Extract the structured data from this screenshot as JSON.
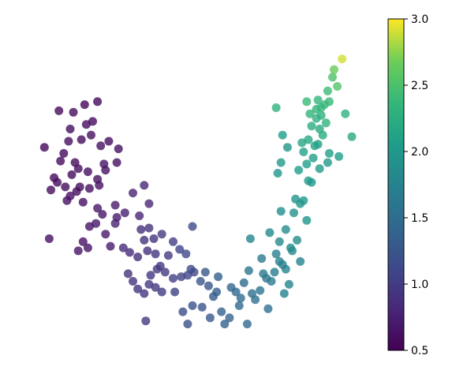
{
  "chart_data": {
    "type": "scatter",
    "title": "",
    "xlabel": "",
    "ylabel": "",
    "axes_visible": false,
    "xlim": [
      0,
      100
    ],
    "ylim": [
      0,
      100
    ],
    "grid": false,
    "colormap": "viridis",
    "colorbar": {
      "vmin": 0.5,
      "vmax": 3.0,
      "ticks": [
        0.5,
        1.0,
        1.5,
        2.0,
        2.5,
        3.0
      ],
      "tick_labels": [
        "0.5",
        "1.0",
        "1.5",
        "2.0",
        "2.5",
        "3.0"
      ],
      "placement": "right"
    },
    "marker_alpha": 0.8,
    "points": [
      [
        4.0,
        62.0,
        0.55
      ],
      [
        8.5,
        74.0,
        0.57
      ],
      [
        13.0,
        73.5,
        0.58
      ],
      [
        16.5,
        76.0,
        0.56
      ],
      [
        19.0,
        70.5,
        0.57
      ],
      [
        20.5,
        77.0,
        0.58
      ],
      [
        12.0,
        68.0,
        0.6
      ],
      [
        17.0,
        69.5,
        0.59
      ],
      [
        11.5,
        64.0,
        0.61
      ],
      [
        15.5,
        64.5,
        0.6
      ],
      [
        10.0,
        60.0,
        0.57
      ],
      [
        13.5,
        57.0,
        0.58
      ],
      [
        18.5,
        66.0,
        0.62
      ],
      [
        21.5,
        62.5,
        0.63
      ],
      [
        24.0,
        64.0,
        0.6
      ],
      [
        27.0,
        61.5,
        0.62
      ],
      [
        9.0,
        57.5,
        0.59
      ],
      [
        12.5,
        53.0,
        0.58
      ],
      [
        14.5,
        55.0,
        0.6
      ],
      [
        17.5,
        54.0,
        0.61
      ],
      [
        7.0,
        52.0,
        0.58
      ],
      [
        10.5,
        49.0,
        0.6
      ],
      [
        15.0,
        49.0,
        0.59
      ],
      [
        20.5,
        51.5,
        0.62
      ],
      [
        23.0,
        54.5,
        0.63
      ],
      [
        6.0,
        48.0,
        0.6
      ],
      [
        12.0,
        46.0,
        0.61
      ],
      [
        18.0,
        48.5,
        0.61
      ],
      [
        22.5,
        56.5,
        0.63
      ],
      [
        26.5,
        57.0,
        0.62
      ],
      [
        11.0,
        44.5,
        0.62
      ],
      [
        16.0,
        44.0,
        0.61
      ],
      [
        21.0,
        49.5,
        0.64
      ],
      [
        14.0,
        47.5,
        0.59
      ],
      [
        8.0,
        50.5,
        0.58
      ],
      [
        5.5,
        32.0,
        0.62
      ],
      [
        14.5,
        28.0,
        0.65
      ],
      [
        16.0,
        31.0,
        0.64
      ],
      [
        17.5,
        29.0,
        0.66
      ],
      [
        20.0,
        37.0,
        0.68
      ],
      [
        23.0,
        33.5,
        0.7
      ],
      [
        24.5,
        29.5,
        0.72
      ],
      [
        26.5,
        39.0,
        0.72
      ],
      [
        18.0,
        36.0,
        0.66
      ],
      [
        29.0,
        40.5,
        0.75
      ],
      [
        20.5,
        42.0,
        0.7
      ],
      [
        22.0,
        40.0,
        0.68
      ],
      [
        26.0,
        43.0,
        0.71
      ],
      [
        31.5,
        47.0,
        0.78
      ],
      [
        35.0,
        49.5,
        0.8
      ],
      [
        33.5,
        39.5,
        0.8
      ],
      [
        36.5,
        43.5,
        0.82
      ],
      [
        26.0,
        37.0,
        0.78
      ],
      [
        28.5,
        29.0,
        0.85
      ],
      [
        30.5,
        27.5,
        0.86
      ],
      [
        34.0,
        35.0,
        0.88
      ],
      [
        35.0,
        31.5,
        0.9
      ],
      [
        36.5,
        35.5,
        0.92
      ],
      [
        38.0,
        32.0,
        0.94
      ],
      [
        33.0,
        26.0,
        0.88
      ],
      [
        36.0,
        28.0,
        0.91
      ],
      [
        40.5,
        33.5,
        0.97
      ],
      [
        38.5,
        27.0,
        0.95
      ],
      [
        42.5,
        26.5,
        1.0
      ],
      [
        44.0,
        31.0,
        1.02
      ],
      [
        40.0,
        23.0,
        0.97
      ],
      [
        37.0,
        20.0,
        0.95
      ],
      [
        39.0,
        22.0,
        0.98
      ],
      [
        41.5,
        21.0,
        1.0
      ],
      [
        44.0,
        19.0,
        1.03
      ],
      [
        30.0,
        20.5,
        0.92
      ],
      [
        33.0,
        15.5,
        0.93
      ],
      [
        35.0,
        14.0,
        0.95
      ],
      [
        36.5,
        17.0,
        0.96
      ],
      [
        38.5,
        16.0,
        0.98
      ],
      [
        31.5,
        18.0,
        0.92
      ],
      [
        40.5,
        14.5,
        1.0
      ],
      [
        44.5,
        14.5,
        1.05
      ],
      [
        46.5,
        19.5,
        1.07
      ],
      [
        48.5,
        20.0,
        1.09
      ],
      [
        50.5,
        21.0,
        1.12
      ],
      [
        46.0,
        28.5,
        1.1
      ],
      [
        48.0,
        27.0,
        1.12
      ],
      [
        50.0,
        36.0,
        1.15
      ],
      [
        49.5,
        22.0,
        1.13
      ],
      [
        35.5,
        5.0,
        1.0
      ],
      [
        47.0,
        8.0,
        1.18
      ],
      [
        48.5,
        4.0,
        1.2
      ],
      [
        50.0,
        10.0,
        1.22
      ],
      [
        53.0,
        9.5,
        1.25
      ],
      [
        52.5,
        18.0,
        1.24
      ],
      [
        54.0,
        21.0,
        1.28
      ],
      [
        55.0,
        16.5,
        1.28
      ],
      [
        55.5,
        6.0,
        1.3
      ],
      [
        56.5,
        13.0,
        1.32
      ],
      [
        57.5,
        14.5,
        1.34
      ],
      [
        58.0,
        19.5,
        1.35
      ],
      [
        59.0,
        8.0,
        1.37
      ],
      [
        60.0,
        4.0,
        1.38
      ],
      [
        61.5,
        6.0,
        1.4
      ],
      [
        62.0,
        16.0,
        1.42
      ],
      [
        63.5,
        14.5,
        1.44
      ],
      [
        64.5,
        10.0,
        1.46
      ],
      [
        65.0,
        12.5,
        1.48
      ],
      [
        66.0,
        17.5,
        1.5
      ],
      [
        67.0,
        4.0,
        1.45
      ],
      [
        68.5,
        14.0,
        1.52
      ],
      [
        69.5,
        12.0,
        1.55
      ],
      [
        71.0,
        15.0,
        1.58
      ],
      [
        72.0,
        20.5,
        1.62
      ],
      [
        73.5,
        9.0,
        1.55
      ],
      [
        74.5,
        18.0,
        1.65
      ],
      [
        75.5,
        21.0,
        1.68
      ],
      [
        76.0,
        27.0,
        1.7
      ],
      [
        77.0,
        24.5,
        1.72
      ],
      [
        78.5,
        14.0,
        1.74
      ],
      [
        79.0,
        22.0,
        1.76
      ],
      [
        80.0,
        17.0,
        1.78
      ],
      [
        81.0,
        28.0,
        1.82
      ],
      [
        82.5,
        31.5,
        1.85
      ],
      [
        83.5,
        24.5,
        1.75
      ],
      [
        74.0,
        34.0,
        1.82
      ],
      [
        79.0,
        35.0,
        1.88
      ],
      [
        80.5,
        29.0,
        1.86
      ],
      [
        83.5,
        43.5,
        1.95
      ],
      [
        85.5,
        38.0,
        1.98
      ],
      [
        68.0,
        32.0,
        1.78
      ],
      [
        77.0,
        31.0,
        1.84
      ],
      [
        67.5,
        21.5,
        1.6
      ],
      [
        71.5,
        25.5,
        1.65
      ],
      [
        73.0,
        19.0,
        1.62
      ],
      [
        77.5,
        41.0,
        1.9
      ],
      [
        76.5,
        53.5,
        1.98
      ],
      [
        77.5,
        57.0,
        2.02
      ],
      [
        76.0,
        75.0,
        2.3
      ],
      [
        78.0,
        66.0,
        2.05
      ],
      [
        82.0,
        45.0,
        1.96
      ],
      [
        84.5,
        44.5,
        2.0
      ],
      [
        83.0,
        54.5,
        2.05
      ],
      [
        85.5,
        56.5,
        2.08
      ],
      [
        84.0,
        63.5,
        2.15
      ],
      [
        86.0,
        64.5,
        2.18
      ],
      [
        88.0,
        62.5,
        2.12
      ],
      [
        89.5,
        68.0,
        2.2
      ],
      [
        90.5,
        66.0,
        2.22
      ],
      [
        87.0,
        69.0,
        2.25
      ],
      [
        90.0,
        72.5,
        2.28
      ],
      [
        88.5,
        74.5,
        2.32
      ],
      [
        89.0,
        77.5,
        2.35
      ],
      [
        91.0,
        76.0,
        2.38
      ],
      [
        92.0,
        80.5,
        2.42
      ],
      [
        93.5,
        85.0,
        2.5
      ],
      [
        95.0,
        82.0,
        2.55
      ],
      [
        96.5,
        91.0,
        2.9
      ],
      [
        94.0,
        87.5,
        2.65
      ],
      [
        92.5,
        77.0,
        2.38
      ],
      [
        97.5,
        73.0,
        2.3
      ],
      [
        88.5,
        71.5,
        2.28
      ],
      [
        91.5,
        70.0,
        2.32
      ],
      [
        86.5,
        73.0,
        2.34
      ],
      [
        89.0,
        63.0,
        2.1
      ],
      [
        87.5,
        58.5,
        2.08
      ],
      [
        84.5,
        60.5,
        2.1
      ],
      [
        89.5,
        55.0,
        2.04
      ],
      [
        87.0,
        50.5,
        2.02
      ],
      [
        92.0,
        57.0,
        2.0
      ],
      [
        95.5,
        59.0,
        2.06
      ],
      [
        99.5,
        65.5,
        2.2
      ],
      [
        90.0,
        75.0,
        2.36
      ],
      [
        85.5,
        77.0,
        2.4
      ],
      [
        86.0,
        51.0,
        2.0
      ],
      [
        92.5,
        60.0,
        2.08
      ],
      [
        79.5,
        62.0,
        1.98
      ],
      [
        81.5,
        40.5,
        1.92
      ],
      [
        78.0,
        23.5,
        1.7
      ]
    ]
  }
}
